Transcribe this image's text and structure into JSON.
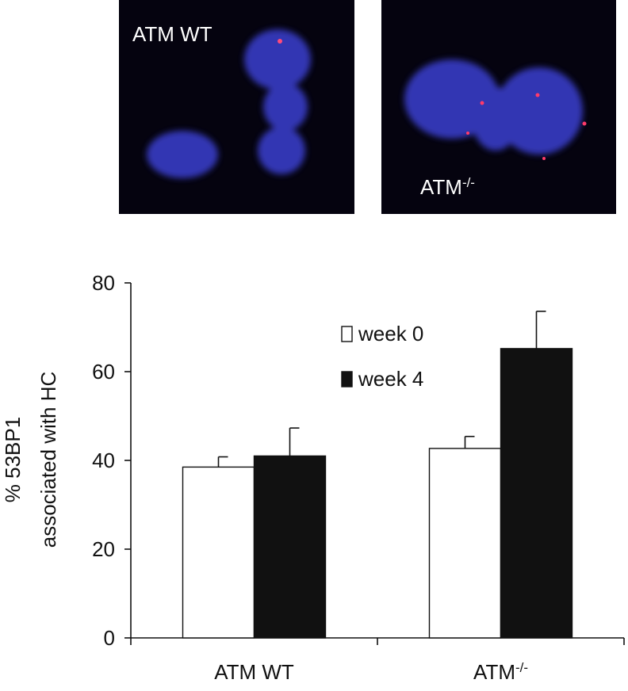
{
  "panels": [
    {
      "label": "ATM WT"
    },
    {
      "label": "ATM-/-"
    }
  ],
  "chart_data": {
    "type": "bar",
    "y_label": [
      "% 53BP1",
      "associated with HC"
    ],
    "categories": [
      "ATM WT",
      "ATM-/-"
    ],
    "series": [
      {
        "name": "week 0",
        "color": "#ffffff",
        "values": [
          38.5,
          42.7
        ],
        "errors": [
          2.3,
          2.7
        ]
      },
      {
        "name": "week 4",
        "color": "#111111",
        "values": [
          41,
          65.2
        ],
        "errors": [
          6.3,
          8.4
        ]
      }
    ],
    "ylim": [
      0,
      80
    ],
    "yticks": [
      0,
      20,
      40,
      60,
      80
    ]
  }
}
